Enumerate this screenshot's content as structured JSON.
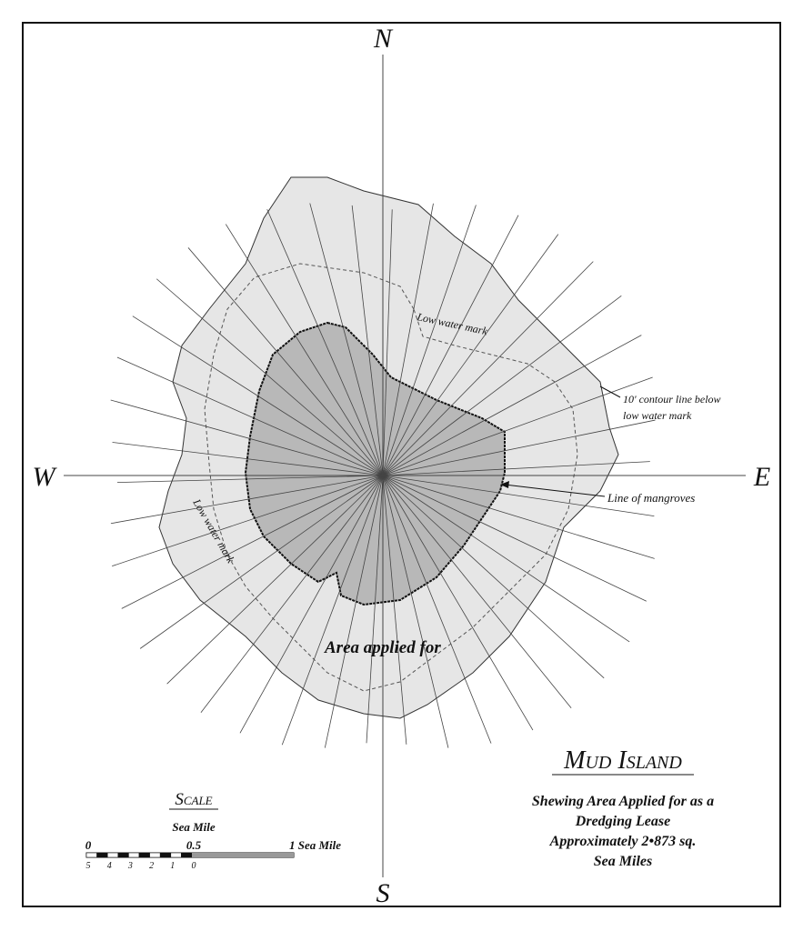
{
  "compass": {
    "north": "N",
    "south": "S",
    "east": "E",
    "west": "W"
  },
  "labels": {
    "low_water_mark_north": "Low water mark",
    "low_water_mark_west": "Low water mark",
    "contour": [
      "10' contour line below",
      "low water mark"
    ],
    "mangroves": "Line of mangroves",
    "area": "Area applied for"
  },
  "title": {
    "name": "Mud Island",
    "subtitle": [
      "Shewing Area Applied for as a",
      "Dredging Lease",
      "Approximately 2•873 sq.",
      "Sea Miles"
    ]
  },
  "scale": {
    "title": "Scale",
    "unit": "Sea Mile",
    "ticks": [
      "0",
      "0.5",
      "1 Sea Mile"
    ],
    "sub_ticks": [
      "5",
      "4",
      "3",
      "2",
      "1",
      "0"
    ]
  }
}
